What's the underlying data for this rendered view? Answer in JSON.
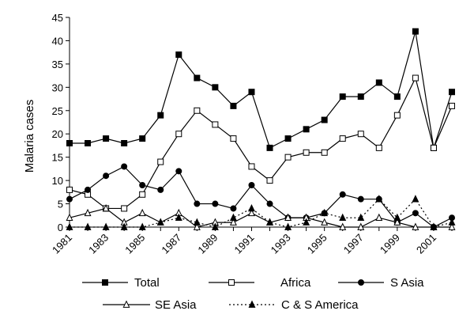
{
  "chart_data": {
    "type": "line",
    "ylabel": "Malaria cases",
    "xlabel": "",
    "ylim": [
      0,
      45
    ],
    "yticks": [
      0,
      5,
      10,
      15,
      20,
      25,
      30,
      35,
      40,
      45
    ],
    "xlim": [
      1981,
      2002
    ],
    "xticks": [
      1981,
      1983,
      1985,
      1987,
      1989,
      1991,
      1993,
      1995,
      1997,
      1999,
      2001
    ],
    "x": [
      1981,
      1982,
      1983,
      1984,
      1985,
      1986,
      1987,
      1988,
      1989,
      1990,
      1991,
      1992,
      1993,
      1994,
      1995,
      1996,
      1997,
      1998,
      1999,
      2000,
      2001,
      2002
    ],
    "grid": false,
    "legend_position": "bottom",
    "series": [
      {
        "name": "Total",
        "marker": "filled-square",
        "dash": "solid",
        "values": [
          18,
          18,
          19,
          18,
          19,
          24,
          37,
          32,
          30,
          26,
          29,
          17,
          19,
          21,
          23,
          28,
          28,
          31,
          28,
          42,
          17,
          29
        ]
      },
      {
        "name": "Africa",
        "marker": "open-square",
        "dash": "solid",
        "values": [
          8,
          7,
          4,
          4,
          7,
          14,
          20,
          25,
          22,
          19,
          13,
          10,
          15,
          16,
          16,
          19,
          20,
          17,
          24,
          32,
          17,
          26
        ]
      },
      {
        "name": "S Asia",
        "marker": "filled-circle",
        "dash": "solid",
        "values": [
          6,
          8,
          11,
          13,
          9,
          8,
          12,
          5,
          5,
          4,
          9,
          5,
          2,
          2,
          3,
          7,
          6,
          6,
          1,
          3,
          0,
          2
        ]
      },
      {
        "name": "SE Asia",
        "marker": "open-triangle",
        "dash": "solid",
        "values": [
          2,
          3,
          4,
          1,
          3,
          1,
          3,
          0,
          1,
          1,
          3,
          1,
          2,
          2,
          1,
          0,
          0,
          2,
          1,
          0,
          0,
          0
        ]
      },
      {
        "name": "C & S  America",
        "marker": "filled-triangle",
        "dash": "dotted",
        "values": [
          0,
          0,
          0,
          0,
          0,
          1,
          2,
          1,
          0,
          2,
          4,
          1,
          0,
          1,
          3,
          2,
          2,
          6,
          2,
          6,
          0,
          1
        ]
      }
    ]
  }
}
